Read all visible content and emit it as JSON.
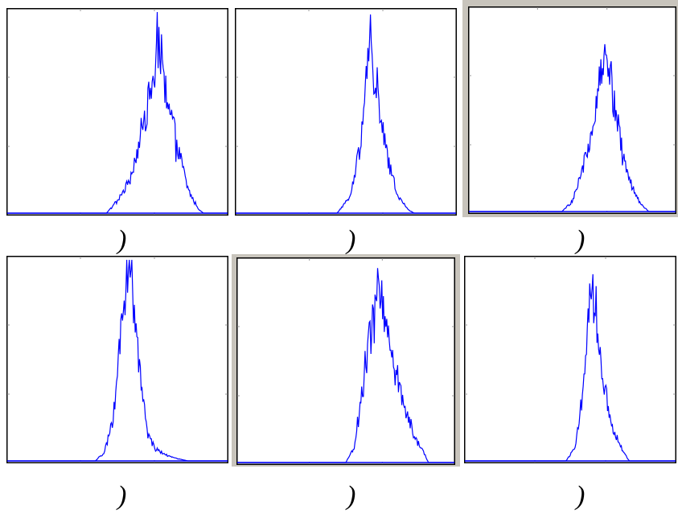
{
  "colors": {
    "trace": "#0000ff",
    "axis_frame": "#000000",
    "outer_frame_gray": "#c8c4bc"
  },
  "captions": [
    ")",
    ")",
    ")",
    ")",
    ")",
    ")"
  ],
  "chart_data": [
    {
      "type": "line",
      "ylim": [
        0,
        1
      ],
      "grid": false,
      "series": [
        {
          "points": [
            [
              0.0,
              0.0
            ],
            [
              0.45,
              0.0
            ],
            [
              0.5,
              0.06
            ],
            [
              0.55,
              0.15
            ],
            [
              0.6,
              0.35
            ],
            [
              0.64,
              0.55
            ],
            [
              0.67,
              0.7
            ],
            [
              0.69,
              0.9
            ],
            [
              0.71,
              0.62
            ],
            [
              0.74,
              0.5
            ],
            [
              0.78,
              0.3
            ],
            [
              0.82,
              0.12
            ],
            [
              0.86,
              0.03
            ],
            [
              0.89,
              0.0
            ],
            [
              1.0,
              0.0
            ]
          ]
        }
      ]
    },
    {
      "type": "line",
      "ylim": [
        0,
        1
      ],
      "grid": false,
      "series": [
        {
          "points": [
            [
              0.0,
              0.0
            ],
            [
              0.46,
              0.0
            ],
            [
              0.52,
              0.08
            ],
            [
              0.56,
              0.3
            ],
            [
              0.59,
              0.6
            ],
            [
              0.61,
              0.87
            ],
            [
              0.63,
              0.65
            ],
            [
              0.66,
              0.45
            ],
            [
              0.7,
              0.22
            ],
            [
              0.74,
              0.08
            ],
            [
              0.78,
              0.02
            ],
            [
              0.81,
              0.0
            ],
            [
              1.0,
              0.0
            ]
          ]
        }
      ]
    },
    {
      "type": "line",
      "ylim": [
        0,
        1
      ],
      "grid": false,
      "series": [
        {
          "points": [
            [
              0.0,
              0.0
            ],
            [
              0.45,
              0.0
            ],
            [
              0.5,
              0.05
            ],
            [
              0.55,
              0.2
            ],
            [
              0.6,
              0.45
            ],
            [
              0.64,
              0.72
            ],
            [
              0.66,
              0.85
            ],
            [
              0.68,
              0.65
            ],
            [
              0.71,
              0.48
            ],
            [
              0.75,
              0.28
            ],
            [
              0.79,
              0.12
            ],
            [
              0.83,
              0.04
            ],
            [
              0.87,
              0.0
            ],
            [
              1.0,
              0.0
            ]
          ]
        }
      ]
    },
    {
      "type": "line",
      "ylim": [
        0,
        1
      ],
      "grid": false,
      "series": [
        {
          "points": [
            [
              0.0,
              0.0
            ],
            [
              0.4,
              0.0
            ],
            [
              0.44,
              0.04
            ],
            [
              0.48,
              0.2
            ],
            [
              0.51,
              0.55
            ],
            [
              0.54,
              0.9
            ],
            [
              0.56,
              1.0
            ],
            [
              0.58,
              0.7
            ],
            [
              0.61,
              0.35
            ],
            [
              0.64,
              0.12
            ],
            [
              0.68,
              0.05
            ],
            [
              0.74,
              0.02
            ],
            [
              0.82,
              0.0
            ],
            [
              1.0,
              0.0
            ]
          ]
        }
      ]
    },
    {
      "type": "line",
      "ylim": [
        0,
        1
      ],
      "grid": false,
      "series": [
        {
          "points": [
            [
              0.0,
              0.0
            ],
            [
              0.5,
              0.0
            ],
            [
              0.54,
              0.08
            ],
            [
              0.57,
              0.3
            ],
            [
              0.6,
              0.55
            ],
            [
              0.63,
              0.72
            ],
            [
              0.65,
              0.88
            ],
            [
              0.67,
              0.75
            ],
            [
              0.71,
              0.55
            ],
            [
              0.75,
              0.36
            ],
            [
              0.79,
              0.2
            ],
            [
              0.83,
              0.1
            ],
            [
              0.86,
              0.05
            ],
            [
              0.88,
              0.0
            ],
            [
              1.0,
              0.0
            ]
          ]
        }
      ]
    },
    {
      "type": "line",
      "ylim": [
        0,
        1
      ],
      "grid": false,
      "series": [
        {
          "points": [
            [
              0.0,
              0.0
            ],
            [
              0.48,
              0.0
            ],
            [
              0.52,
              0.06
            ],
            [
              0.55,
              0.25
            ],
            [
              0.58,
              0.6
            ],
            [
              0.6,
              0.88
            ],
            [
              0.62,
              0.78
            ],
            [
              0.64,
              0.55
            ],
            [
              0.67,
              0.33
            ],
            [
              0.7,
              0.17
            ],
            [
              0.74,
              0.07
            ],
            [
              0.78,
              0.0
            ],
            [
              1.0,
              0.0
            ]
          ]
        }
      ]
    }
  ]
}
